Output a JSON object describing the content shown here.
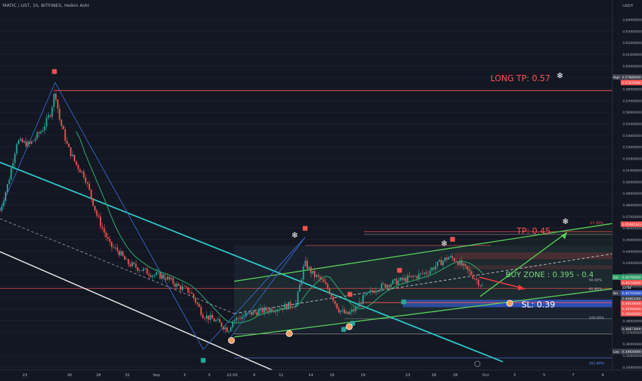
{
  "header": {
    "symbol_line": "MATIC / UST, 1h, BITFINEX, Heikin Ashi",
    "currency": "USDT"
  },
  "colors": {
    "background": "#131722",
    "up_candle": "#26a69a",
    "down_candle": "#ef5350",
    "channel": "#5ad05a",
    "cyan_trend": "#2ec4c4",
    "white_trend": "#e6e6e6",
    "zigzag": "#3b6fd6",
    "buy_zone": "#2f56c8",
    "axis_text": "#b2b5be",
    "label_green": "#7fd37f",
    "label_red": "#ff5252"
  },
  "annotations": {
    "long_tp": "LONG TP: 0.57",
    "tp": "TP: 0.45",
    "buy_zone": "BUY ZONE : 0.395 - 0.4",
    "sl": "SL: 0.39",
    "fib_neg27": "-27.20%",
    "fib_50": "50.00%",
    "fib_618": "61.80%",
    "fib_100": "100.00%",
    "fib_1618": "161.80%"
  },
  "price_tags": {
    "high_label": "High",
    "high_value": "0.57880000",
    "high_line": "0.57870000",
    "tp_value": "0.45685343",
    "ask_label": "Ask",
    "ask_value": "0.40795000",
    "last_value": "0.40716000",
    "countdown": "13:56",
    "bid_label": "Bid",
    "bid_value": "0.40705000",
    "mid_value": "0.40661000",
    "red_a": "0.40639000",
    "red_b": "0.39599000",
    "red_c": "0.39569000",
    "low_line_value": "0.36873000",
    "low_label": "Low",
    "low_value": "0.34920000"
  },
  "chart_data": {
    "type": "candlestick",
    "chart_style": "Heikin Ashi",
    "interval": "1h",
    "y_axis": {
      "ylim": [
        0.3375,
        0.6545
      ],
      "tick_labels": [
        "0.64000000",
        "0.63000000",
        "0.62000000",
        "0.61000000",
        "0.60000000",
        "0.59000000",
        "0.58000000",
        "0.57000000",
        "0.56000000",
        "0.55000000",
        "0.54000000",
        "0.53000000",
        "0.52000000",
        "0.51000000",
        "0.50000000",
        "0.49000000",
        "0.48000000",
        "0.47000000",
        "0.46000000",
        "0.45000000",
        "0.44000000",
        "0.43000000",
        "0.42000000",
        "0.41000000",
        "0.40000000",
        "0.39000000",
        "0.38000000",
        "0.37000000",
        "0.36000000",
        "0.35000000",
        "0.34000000"
      ]
    },
    "x_axis": {
      "tick_labels": [
        "23",
        "26",
        "28",
        "31",
        "Sep",
        "3",
        "5",
        "22:00",
        "9",
        "11",
        "14",
        "16",
        "19",
        "23",
        "26",
        "28",
        "Oct",
        "3",
        "5",
        "7",
        "9"
      ]
    },
    "price_path": [
      {
        "t": 0,
        "p": 0.475
      },
      {
        "t": 2,
        "p": 0.5
      },
      {
        "t": 4,
        "p": 0.535
      },
      {
        "t": 7,
        "p": 0.532
      },
      {
        "t": 10,
        "p": 0.545
      },
      {
        "t": 12,
        "p": 0.56
      },
      {
        "t": 13,
        "p": 0.579
      },
      {
        "t": 14,
        "p": 0.555
      },
      {
        "t": 16,
        "p": 0.53
      },
      {
        "t": 18,
        "p": 0.515
      },
      {
        "t": 20,
        "p": 0.505
      },
      {
        "t": 23,
        "p": 0.47
      },
      {
        "t": 26,
        "p": 0.445
      },
      {
        "t": 28,
        "p": 0.44
      },
      {
        "t": 30,
        "p": 0.43
      },
      {
        "t": 33,
        "p": 0.425
      },
      {
        "t": 36,
        "p": 0.42
      },
      {
        "t": 39,
        "p": 0.418
      },
      {
        "t": 42,
        "p": 0.41
      },
      {
        "t": 45,
        "p": 0.405
      },
      {
        "t": 48,
        "p": 0.385
      },
      {
        "t": 51,
        "p": 0.38
      },
      {
        "t": 54,
        "p": 0.372
      },
      {
        "t": 55,
        "p": 0.38
      },
      {
        "t": 58,
        "p": 0.385
      },
      {
        "t": 61,
        "p": 0.388
      },
      {
        "t": 64,
        "p": 0.39
      },
      {
        "t": 67,
        "p": 0.392
      },
      {
        "t": 70,
        "p": 0.395
      },
      {
        "t": 72,
        "p": 0.43
      },
      {
        "t": 74,
        "p": 0.42
      },
      {
        "t": 76,
        "p": 0.415
      },
      {
        "t": 78,
        "p": 0.405
      },
      {
        "t": 80,
        "p": 0.39
      },
      {
        "t": 82,
        "p": 0.385
      },
      {
        "t": 84,
        "p": 0.39
      },
      {
        "t": 86,
        "p": 0.4
      },
      {
        "t": 89,
        "p": 0.408
      },
      {
        "t": 92,
        "p": 0.412
      },
      {
        "t": 95,
        "p": 0.415
      },
      {
        "t": 98,
        "p": 0.418
      },
      {
        "t": 101,
        "p": 0.422
      },
      {
        "t": 104,
        "p": 0.43
      },
      {
        "t": 106,
        "p": 0.435
      },
      {
        "t": 108,
        "p": 0.432
      },
      {
        "t": 110,
        "p": 0.425
      },
      {
        "t": 112,
        "p": 0.418
      },
      {
        "t": 114,
        "p": 0.41
      }
    ],
    "horizontal_levels": [
      0.5787,
      0.4569,
      0.408,
      0.405,
      0.3957,
      0.3687,
      0.3492
    ],
    "buy_zone": [
      0.395,
      0.4
    ],
    "take_profit": 0.45,
    "long_take_profit": 0.57,
    "stop_loss": 0.39,
    "fib_levels": [
      "-27.20%",
      "50.00%",
      "61.80%",
      "100.00%",
      "161.80%"
    ]
  }
}
